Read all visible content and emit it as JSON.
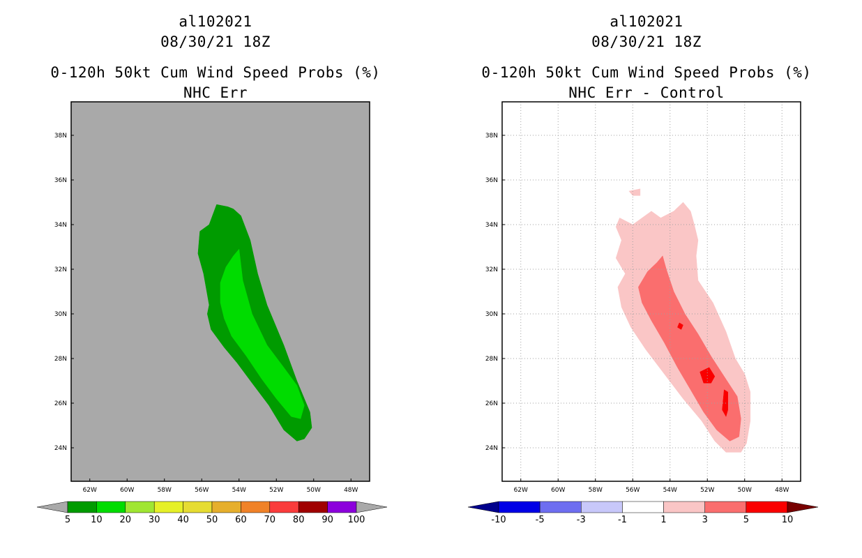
{
  "chart_data": [
    {
      "type": "contour-map",
      "storm_id": "al102021",
      "datetime": "08/30/21 18Z",
      "title": "0-120h 50kt Cum Wind Speed Probs (%)",
      "subtitle": "NHC Err",
      "xlim": [
        -63,
        -47
      ],
      "ylim": [
        22.5,
        39.5
      ],
      "x_ticks": [
        -62,
        -60,
        -58,
        -56,
        -54,
        -52,
        -50,
        -48
      ],
      "x_tick_labels": [
        "62W",
        "60W",
        "58W",
        "56W",
        "54W",
        "52W",
        "50W",
        "48W"
      ],
      "y_ticks": [
        24,
        26,
        28,
        30,
        32,
        34,
        36,
        38
      ],
      "y_tick_labels": [
        "24N",
        "26N",
        "28N",
        "30N",
        "32N",
        "34N",
        "36N",
        "38N"
      ],
      "background_color": "#a9a9a9",
      "contours": [
        {
          "level": "5-10",
          "color": "#009b00",
          "points": [
            [
              -55.6,
              34.0
            ],
            [
              -55.2,
              34.9
            ],
            [
              -54.6,
              34.8
            ],
            [
              -54.3,
              34.7
            ],
            [
              -53.9,
              34.4
            ],
            [
              -53.4,
              33.3
            ],
            [
              -53.0,
              31.8
            ],
            [
              -52.5,
              30.4
            ],
            [
              -51.6,
              28.6
            ],
            [
              -50.9,
              27.0
            ],
            [
              -50.2,
              25.6
            ],
            [
              -50.1,
              24.9
            ],
            [
              -50.5,
              24.4
            ],
            [
              -50.9,
              24.3
            ],
            [
              -51.6,
              24.8
            ],
            [
              -52.4,
              25.9
            ],
            [
              -53.3,
              26.9
            ],
            [
              -54.1,
              27.8
            ],
            [
              -54.8,
              28.5
            ],
            [
              -55.5,
              29.3
            ],
            [
              -55.7,
              30.0
            ],
            [
              -55.6,
              30.4
            ],
            [
              -55.9,
              31.8
            ],
            [
              -56.2,
              32.7
            ],
            [
              -56.1,
              33.7
            ]
          ]
        },
        {
          "level": "10-20",
          "color": "#00dc00",
          "points": [
            [
              -54.0,
              32.9
            ],
            [
              -53.8,
              31.5
            ],
            [
              -53.3,
              30.0
            ],
            [
              -52.5,
              28.6
            ],
            [
              -51.6,
              27.6
            ],
            [
              -50.9,
              26.8
            ],
            [
              -50.5,
              25.9
            ],
            [
              -50.7,
              25.3
            ],
            [
              -51.2,
              25.4
            ],
            [
              -52.0,
              26.2
            ],
            [
              -52.8,
              27.1
            ],
            [
              -53.6,
              28.1
            ],
            [
              -54.4,
              29.0
            ],
            [
              -54.8,
              29.8
            ],
            [
              -55.0,
              30.5
            ],
            [
              -55.0,
              31.4
            ],
            [
              -54.7,
              32.1
            ],
            [
              -54.3,
              32.6
            ]
          ]
        }
      ],
      "colorbar": {
        "colors": [
          "#009b00",
          "#00dc00",
          "#a0e632",
          "#e6f028",
          "#e6dc32",
          "#e6af2d",
          "#f08228",
          "#fa3c3c",
          "#a00000",
          "#8c00dc"
        ],
        "labels": [
          "5",
          "10",
          "20",
          "30",
          "40",
          "50",
          "60",
          "70",
          "80",
          "90",
          "100"
        ],
        "under_color": "#a9a9a9",
        "over_color": "#a9a9a9"
      }
    },
    {
      "type": "contour-map",
      "storm_id": "al102021",
      "datetime": "08/30/21 18Z",
      "title": "0-120h 50kt Cum Wind Speed Probs (%)",
      "subtitle": "NHC Err - Control",
      "xlim": [
        -63,
        -47
      ],
      "ylim": [
        22.5,
        39.5
      ],
      "x_ticks": [
        -62,
        -60,
        -58,
        -56,
        -54,
        -52,
        -50,
        -48
      ],
      "x_tick_labels": [
        "62W",
        "60W",
        "58W",
        "56W",
        "54W",
        "52W",
        "50W",
        "48W"
      ],
      "y_ticks": [
        24,
        26,
        28,
        30,
        32,
        34,
        36,
        38
      ],
      "y_tick_labels": [
        "24N",
        "26N",
        "28N",
        "30N",
        "32N",
        "34N",
        "36N",
        "38N"
      ],
      "background_color": "#ffffff",
      "grid": true,
      "contours": [
        {
          "level": "1-3",
          "color": "#fac6c6",
          "points": [
            [
              -56.7,
              34.3
            ],
            [
              -56.0,
              34.0
            ],
            [
              -55.0,
              34.6
            ],
            [
              -54.5,
              34.3
            ],
            [
              -53.8,
              34.6
            ],
            [
              -53.3,
              35.0
            ],
            [
              -52.9,
              34.6
            ],
            [
              -52.7,
              34.0
            ],
            [
              -52.5,
              33.3
            ],
            [
              -52.6,
              32.6
            ],
            [
              -52.5,
              31.5
            ],
            [
              -51.7,
              30.5
            ],
            [
              -51.0,
              29.2
            ],
            [
              -50.5,
              28.0
            ],
            [
              -50.0,
              27.3
            ],
            [
              -49.7,
              26.5
            ],
            [
              -49.7,
              25.2
            ],
            [
              -49.9,
              24.2
            ],
            [
              -50.2,
              23.8
            ],
            [
              -51.0,
              23.8
            ],
            [
              -51.6,
              24.3
            ],
            [
              -52.3,
              25.2
            ],
            [
              -53.3,
              26.2
            ],
            [
              -54.3,
              27.3
            ],
            [
              -55.3,
              28.4
            ],
            [
              -56.1,
              29.4
            ],
            [
              -56.6,
              30.3
            ],
            [
              -56.8,
              31.2
            ],
            [
              -56.4,
              31.8
            ],
            [
              -56.9,
              32.5
            ],
            [
              -56.6,
              33.3
            ],
            [
              -56.9,
              33.9
            ]
          ]
        },
        {
          "level": "1-3",
          "color": "#fac6c6",
          "points": [
            [
              -56.2,
              35.5
            ],
            [
              -55.6,
              35.6
            ],
            [
              -55.6,
              35.3
            ],
            [
              -56.0,
              35.3
            ]
          ]
        },
        {
          "level": "3-5",
          "color": "#fa6e6e",
          "points": [
            [
              -54.7,
              32.3
            ],
            [
              -54.4,
              32.6
            ],
            [
              -54.2,
              32.0
            ],
            [
              -53.8,
              31.0
            ],
            [
              -53.2,
              30.0
            ],
            [
              -52.5,
              29.1
            ],
            [
              -51.8,
              28.1
            ],
            [
              -51.1,
              27.2
            ],
            [
              -50.4,
              26.3
            ],
            [
              -50.2,
              25.3
            ],
            [
              -50.3,
              24.5
            ],
            [
              -50.8,
              24.3
            ],
            [
              -51.5,
              24.8
            ],
            [
              -52.2,
              25.6
            ],
            [
              -52.9,
              26.6
            ],
            [
              -53.6,
              27.6
            ],
            [
              -54.3,
              28.7
            ],
            [
              -55.0,
              29.7
            ],
            [
              -55.5,
              30.5
            ],
            [
              -55.7,
              31.2
            ],
            [
              -55.2,
              31.9
            ]
          ]
        },
        {
          "level": "5-10",
          "color": "#fa0000",
          "points": [
            [
              -52.4,
              27.4
            ],
            [
              -51.9,
              27.6
            ],
            [
              -51.6,
              27.2
            ],
            [
              -51.8,
              26.9
            ],
            [
              -52.2,
              26.9
            ]
          ]
        },
        {
          "level": "5-10",
          "color": "#fa0000",
          "points": [
            [
              -51.1,
              26.6
            ],
            [
              -50.9,
              26.5
            ],
            [
              -50.9,
              25.7
            ],
            [
              -51.0,
              25.4
            ],
            [
              -51.2,
              25.7
            ]
          ]
        },
        {
          "level": "5-10",
          "color": "#fa0000",
          "points": [
            [
              -53.5,
              29.6
            ],
            [
              -53.3,
              29.5
            ],
            [
              -53.4,
              29.3
            ],
            [
              -53.6,
              29.4
            ]
          ]
        }
      ],
      "colorbar": {
        "colors": [
          "#0000e6",
          "#6e6ef0",
          "#c8c8fa",
          "#ffffff",
          "#fac6c6",
          "#fa6e6e",
          "#fa0000"
        ],
        "labels": [
          "-10",
          "-5",
          "-3",
          "-1",
          "1",
          "3",
          "5",
          "10"
        ],
        "under_color": "#00008c",
        "over_color": "#780000"
      }
    }
  ]
}
